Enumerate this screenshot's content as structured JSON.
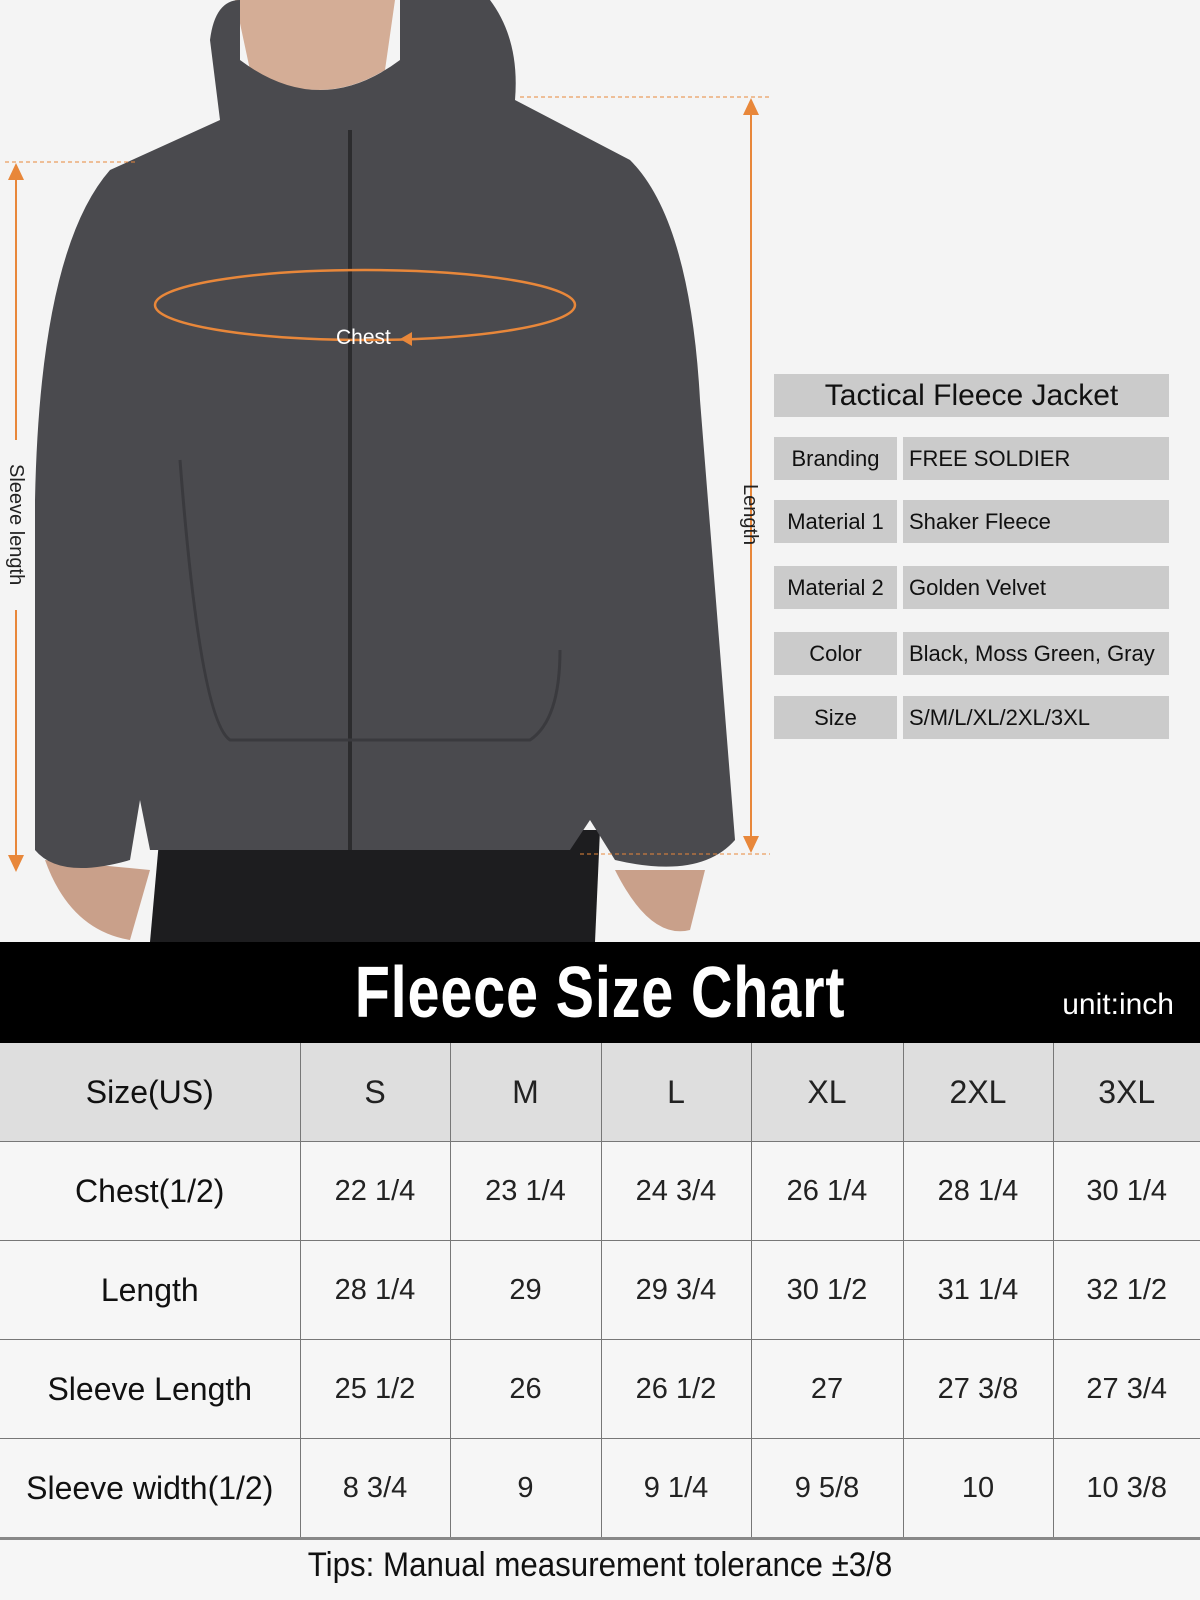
{
  "photo": {
    "labels": {
      "chest": "Chest",
      "length": "Length",
      "sleeve": "Sleeve length"
    },
    "accent_color": "#e8873a",
    "jacket_color": "#4a4a4e"
  },
  "info": {
    "title": "Tactical Fleece Jacket",
    "rows": [
      {
        "label": "Branding",
        "value": "FREE SOLDIER"
      },
      {
        "label": "Material 1",
        "value": "Shaker Fleece"
      },
      {
        "label": "Material 2",
        "value": "Golden Velvet"
      },
      {
        "label": "Color",
        "value": "Black, Moss Green, Gray"
      },
      {
        "label": "Size",
        "value": "S/M/L/XL/2XL/3XL"
      }
    ]
  },
  "chart": {
    "title": "Fleece Size Chart",
    "unit": "unit:inch",
    "headers": [
      "Size(US)",
      "S",
      "M",
      "L",
      "XL",
      "2XL",
      "3XL"
    ],
    "rows": [
      [
        "Chest(1/2)",
        "22 1/4",
        "23 1/4",
        "24 3/4",
        "26 1/4",
        "28 1/4",
        "30 1/4"
      ],
      [
        "Length",
        "28 1/4",
        "29",
        "29 3/4",
        "30 1/2",
        "31 1/4",
        "32 1/2"
      ],
      [
        "Sleeve Length",
        "25 1/2",
        "26",
        "26 1/2",
        "27",
        "27 3/8",
        "27 3/4"
      ],
      [
        "Sleeve width(1/2)",
        "8 3/4",
        "9",
        "9 1/4",
        "9 5/8",
        "10",
        "10 3/8"
      ]
    ],
    "tips": "Tips: Manual measurement tolerance ±3/8"
  }
}
